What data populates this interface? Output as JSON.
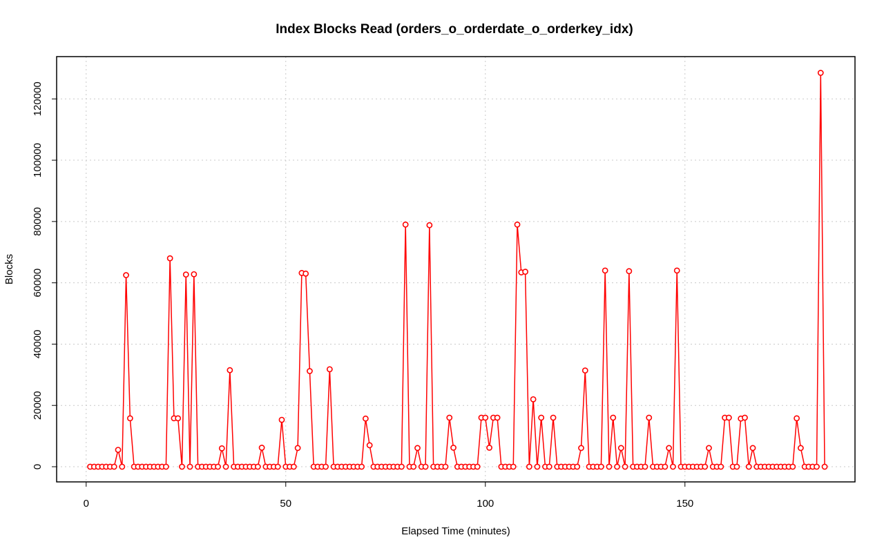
{
  "chart_data": {
    "type": "line",
    "title": "Index Blocks Read (orders_o_orderdate_o_orderkey_idx)",
    "x_label": "Elapsed Time (minutes)",
    "y_label": "Blocks",
    "xlim": [
      -7.4,
      192.6
    ],
    "ylim": [
      -4950,
      133800
    ],
    "xticks": [
      0,
      50,
      100,
      150
    ],
    "yticks": [
      0,
      20000,
      40000,
      60000,
      80000,
      100000,
      120000
    ],
    "grid": true,
    "x": [
      1,
      2,
      3,
      4,
      5,
      6,
      7,
      8,
      9,
      10,
      11,
      12,
      13,
      14,
      15,
      16,
      17,
      18,
      19,
      20,
      21,
      22,
      23,
      24,
      25,
      26,
      27,
      28,
      29,
      30,
      31,
      32,
      33,
      34,
      35,
      36,
      37,
      38,
      39,
      40,
      41,
      42,
      43,
      44,
      45,
      46,
      47,
      48,
      49,
      50,
      51,
      52,
      53,
      54,
      55,
      56,
      57,
      58,
      59,
      60,
      61,
      62,
      63,
      64,
      65,
      66,
      67,
      68,
      69,
      70,
      71,
      72,
      73,
      74,
      75,
      76,
      77,
      78,
      79,
      80,
      81,
      82,
      83,
      84,
      85,
      86,
      87,
      88,
      89,
      90,
      91,
      92,
      93,
      94,
      95,
      96,
      97,
      98,
      99,
      100,
      101,
      102,
      103,
      104,
      105,
      106,
      107,
      108,
      109,
      110,
      111,
      112,
      113,
      114,
      115,
      116,
      117,
      118,
      119,
      120,
      121,
      122,
      123,
      124,
      125,
      126,
      127,
      128,
      129,
      130,
      131,
      132,
      133,
      134,
      135,
      136,
      137,
      138,
      139,
      140,
      141,
      142,
      143,
      144,
      145,
      146,
      147,
      148,
      149,
      150,
      151,
      152,
      153,
      154,
      155,
      156,
      157,
      158,
      159,
      160,
      161,
      162,
      163,
      164,
      165,
      166,
      167,
      168,
      169,
      170,
      171,
      172,
      173,
      174,
      175,
      176,
      177,
      178,
      179,
      180,
      181,
      182,
      183,
      184,
      185
    ],
    "series": [
      {
        "color": "#ff0000",
        "values": [
          0,
          0,
          0,
          0,
          0,
          0,
          0,
          5500,
          0,
          62500,
          15800,
          0,
          0,
          0,
          0,
          0,
          0,
          0,
          0,
          0,
          68000,
          15800,
          15800,
          0,
          62700,
          0,
          62800,
          0,
          0,
          0,
          0,
          0,
          0,
          6000,
          0,
          31500,
          0,
          0,
          0,
          0,
          0,
          0,
          0,
          6200,
          0,
          0,
          0,
          0,
          15300,
          0,
          0,
          0,
          6100,
          63200,
          63000,
          31200,
          0,
          0,
          0,
          0,
          31800,
          0,
          0,
          0,
          0,
          0,
          0,
          0,
          0,
          15700,
          7000,
          0,
          0,
          0,
          0,
          0,
          0,
          0,
          0,
          79000,
          0,
          0,
          6100,
          0,
          0,
          78800,
          0,
          0,
          0,
          0,
          16000,
          6200,
          0,
          0,
          0,
          0,
          0,
          0,
          16000,
          16000,
          6200,
          16000,
          16000,
          0,
          0,
          0,
          0,
          79000,
          63400,
          63600,
          0,
          22000,
          0,
          16000,
          0,
          0,
          16000,
          0,
          0,
          0,
          0,
          0,
          0,
          6100,
          31400,
          0,
          0,
          0,
          0,
          64000,
          0,
          16000,
          0,
          6100,
          0,
          63800,
          0,
          0,
          0,
          0,
          16000,
          0,
          0,
          0,
          0,
          6100,
          0,
          64000,
          0,
          0,
          0,
          0,
          0,
          0,
          0,
          6100,
          0,
          0,
          0,
          16000,
          16000,
          0,
          0,
          15700,
          16000,
          0,
          6100,
          0,
          0,
          0,
          0,
          0,
          0,
          0,
          0,
          0,
          0,
          15800,
          6100,
          0,
          0,
          0,
          0,
          128500,
          0
        ]
      }
    ]
  }
}
